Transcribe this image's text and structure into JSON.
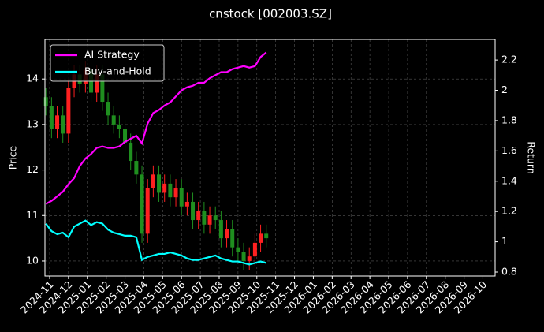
{
  "chart_data": {
    "type": "candlestick",
    "title": "cnstock [002003.SZ]",
    "ylabel": "Price",
    "y2label": "Return",
    "x": [
      -0.2,
      0.1,
      0.4,
      0.7,
      1.0,
      1.3,
      1.6,
      1.9,
      2.2,
      2.5,
      2.8,
      3.1,
      3.4,
      3.7,
      4.0,
      4.3,
      4.6,
      4.9,
      5.2,
      5.5,
      5.8,
      6.1,
      6.4,
      6.7,
      7.0,
      7.3,
      7.6,
      7.9,
      8.2,
      8.5,
      8.8,
      9.1,
      9.4,
      9.7,
      10.0,
      10.3,
      10.6,
      10.9,
      11.2,
      11.5
    ],
    "open": [
      13.6,
      13.4,
      12.9,
      13.2,
      12.8,
      13.8,
      14.1,
      13.9,
      14.2,
      13.7,
      14.1,
      13.5,
      13.2,
      13.0,
      12.9,
      12.6,
      12.2,
      11.9,
      10.6,
      11.6,
      11.9,
      11.5,
      11.7,
      11.4,
      11.6,
      11.2,
      11.3,
      10.9,
      11.1,
      10.8,
      11.0,
      10.9,
      10.5,
      10.7,
      10.3,
      10.2,
      10.0,
      10.1,
      10.4,
      10.6
    ],
    "high": [
      13.8,
      13.6,
      13.4,
      13.4,
      14.0,
      14.3,
      14.3,
      14.4,
      14.4,
      14.3,
      14.3,
      13.7,
      13.4,
      13.2,
      13.1,
      12.8,
      12.4,
      12.1,
      11.8,
      12.1,
      12.1,
      11.9,
      11.9,
      11.8,
      11.8,
      11.5,
      11.5,
      11.3,
      11.3,
      11.2,
      11.2,
      11.1,
      10.9,
      10.9,
      10.5,
      10.4,
      10.3,
      10.6,
      10.8,
      10.8
    ],
    "low": [
      13.2,
      12.7,
      12.7,
      12.6,
      12.6,
      13.6,
      13.7,
      13.7,
      13.5,
      13.5,
      13.3,
      13.0,
      12.8,
      12.7,
      12.4,
      12.0,
      11.7,
      10.4,
      10.4,
      11.4,
      11.3,
      11.3,
      11.2,
      11.2,
      11.0,
      11.0,
      10.7,
      10.7,
      10.6,
      10.6,
      10.7,
      10.3,
      10.3,
      10.1,
      10.0,
      9.8,
      9.8,
      9.9,
      10.2,
      10.3
    ],
    "close": [
      13.4,
      12.9,
      13.2,
      12.8,
      13.8,
      14.1,
      13.9,
      14.2,
      13.7,
      14.1,
      13.5,
      13.2,
      13.0,
      12.9,
      12.6,
      12.2,
      11.9,
      10.6,
      11.6,
      11.9,
      11.5,
      11.7,
      11.4,
      11.6,
      11.2,
      11.3,
      10.9,
      11.1,
      10.8,
      11.0,
      10.9,
      10.5,
      10.7,
      10.3,
      10.2,
      10.0,
      10.1,
      10.4,
      10.6,
      10.5
    ],
    "up_color": "#ff2020",
    "down_color": "#1f8f1f",
    "series": [
      {
        "name": "AI Strategy",
        "color": "#ff00ff",
        "axis": "y2",
        "values": [
          1.25,
          1.27,
          1.3,
          1.33,
          1.38,
          1.42,
          1.5,
          1.55,
          1.58,
          1.62,
          1.63,
          1.62,
          1.62,
          1.63,
          1.66,
          1.68,
          1.7,
          1.65,
          1.78,
          1.85,
          1.87,
          1.9,
          1.92,
          1.96,
          2.0,
          2.02,
          2.03,
          2.05,
          2.05,
          2.08,
          2.1,
          2.12,
          2.12,
          2.14,
          2.15,
          2.16,
          2.15,
          2.16,
          2.22,
          2.25
        ]
      },
      {
        "name": "Buy-and-Hold",
        "color": "#00ffff",
        "axis": "y2",
        "values": [
          1.12,
          1.07,
          1.05,
          1.06,
          1.03,
          1.1,
          1.12,
          1.14,
          1.11,
          1.13,
          1.12,
          1.08,
          1.06,
          1.05,
          1.04,
          1.04,
          1.03,
          0.88,
          0.9,
          0.91,
          0.92,
          0.92,
          0.93,
          0.92,
          0.91,
          0.89,
          0.88,
          0.88,
          0.89,
          0.9,
          0.91,
          0.89,
          0.88,
          0.87,
          0.87,
          0.86,
          0.85,
          0.86,
          0.87,
          0.86
        ]
      }
    ],
    "xlim": [
      -0.25,
      23.65
    ],
    "xticks": [
      {
        "value": 0,
        "label": "2024-11"
      },
      {
        "value": 1,
        "label": "2024-12"
      },
      {
        "value": 2,
        "label": "2025-01"
      },
      {
        "value": 3,
        "label": "2025-02"
      },
      {
        "value": 4,
        "label": "2025-03"
      },
      {
        "value": 5,
        "label": "2025-04"
      },
      {
        "value": 6,
        "label": "2025-05"
      },
      {
        "value": 7,
        "label": "2025-06"
      },
      {
        "value": 8,
        "label": "2025-07"
      },
      {
        "value": 9,
        "label": "2025-08"
      },
      {
        "value": 10,
        "label": "2025-09"
      },
      {
        "value": 11,
        "label": "2025-10"
      },
      {
        "value": 12,
        "label": "2025-11"
      },
      {
        "value": 13,
        "label": "2025-12"
      },
      {
        "value": 14,
        "label": "2026-01"
      },
      {
        "value": 15,
        "label": "2026-02"
      },
      {
        "value": 16,
        "label": "2026-03"
      },
      {
        "value": 17,
        "label": "2026-04"
      },
      {
        "value": 18,
        "label": "2026-05"
      },
      {
        "value": 19,
        "label": "2026-06"
      },
      {
        "value": 20,
        "label": "2026-07"
      },
      {
        "value": 21,
        "label": "2026-08"
      },
      {
        "value": 22,
        "label": "2026-09"
      },
      {
        "value": 23,
        "label": "2026-10"
      }
    ],
    "ylim": [
      9.67,
      14.87
    ],
    "yticks": [
      10,
      11,
      12,
      13,
      14
    ],
    "y2lim": [
      0.774,
      2.336
    ],
    "y2ticks": [
      0.8,
      1.0,
      1.2,
      1.4,
      1.6,
      1.8,
      2.0,
      2.2
    ],
    "grid": true,
    "legend": "upper left"
  }
}
